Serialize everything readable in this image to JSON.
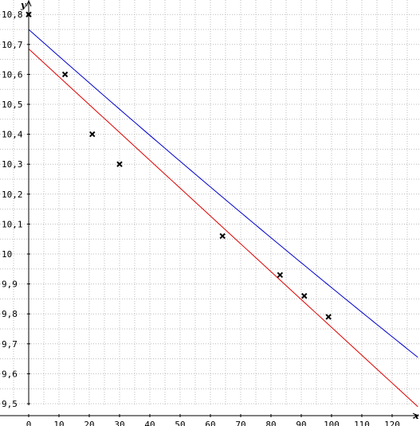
{
  "chart_data": {
    "type": "scatter",
    "title": "",
    "xlabel": "x",
    "ylabel": "y",
    "xlim": [
      0,
      128.5
    ],
    "ylim": [
      9.46,
      10.85
    ],
    "grid": true,
    "x_ticks": [
      0,
      10,
      20,
      30,
      40,
      50,
      60,
      70,
      80,
      90,
      100,
      110,
      120
    ],
    "x_tick_labels": [
      "0",
      "10",
      "20",
      "30",
      "40",
      "50",
      "60",
      "70",
      "80",
      "90",
      "100",
      "110",
      "120"
    ],
    "y_ticks": [
      9.5,
      9.6,
      9.7,
      9.8,
      9.9,
      10.0,
      10.1,
      10.2,
      10.3,
      10.4,
      10.5,
      10.6,
      10.7,
      10.8
    ],
    "y_tick_labels": [
      "9,5",
      "9,6",
      "9,7",
      "9,8",
      "9,9",
      "10",
      "10,1",
      "10,2",
      "10,3",
      "10,4",
      "10,5",
      "10,6",
      "10,7",
      "10,8"
    ],
    "points": [
      {
        "x": 0,
        "y": 10.8
      },
      {
        "x": 12,
        "y": 10.6
      },
      {
        "x": 21,
        "y": 10.4
      },
      {
        "x": 30,
        "y": 10.3
      },
      {
        "x": 64,
        "y": 10.06
      },
      {
        "x": 83,
        "y": 9.93
      },
      {
        "x": 91,
        "y": 9.86
      },
      {
        "x": 99,
        "y": 9.79
      }
    ],
    "curves": [
      {
        "kind": "linear",
        "color": "#dd0000",
        "x_start": 0,
        "x_end": 128.5,
        "y_start": 10.685,
        "y_end": 9.49
      },
      {
        "kind": "exponential",
        "color": "#0000cc",
        "x_start": 0,
        "x_end": 128.5,
        "y_start": 10.75,
        "y_end": 9.655
      }
    ]
  }
}
